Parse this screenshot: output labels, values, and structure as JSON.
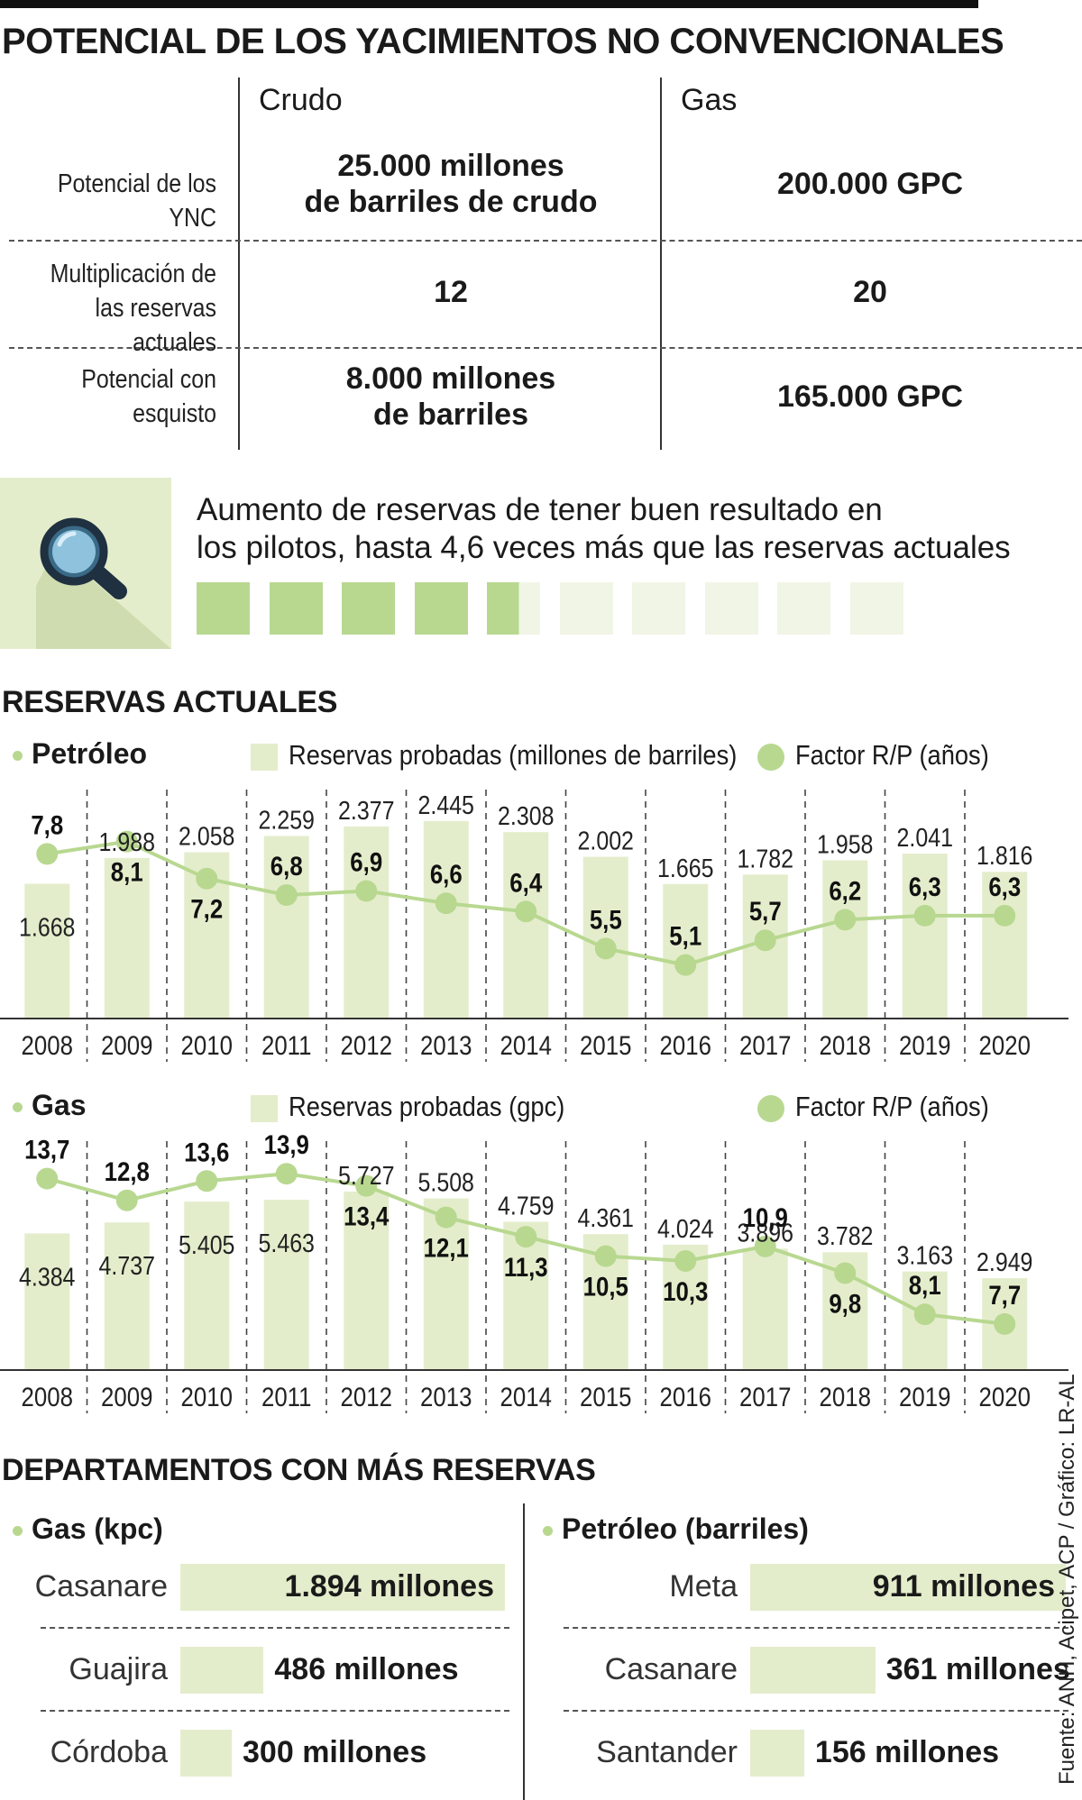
{
  "title": "POTENCIAL DE LOS YACIMIENTOS NO CONVENCIONALES",
  "table": {
    "columns": [
      "Crudo",
      "Gas"
    ],
    "rows": [
      {
        "label": [
          "Potencial de los YNC"
        ],
        "crudo": [
          "25.000 millones",
          "de barriles de crudo"
        ],
        "gas": [
          "200.000 GPC"
        ]
      },
      {
        "label": [
          "Multiplicación de",
          "las reservas actuales"
        ],
        "crudo": [
          "12"
        ],
        "gas": [
          "20"
        ]
      },
      {
        "label": [
          "Potencial con",
          "esquisto"
        ],
        "crudo": [
          "8.000 millones",
          "de barriles"
        ],
        "gas": [
          "165.000 GPC"
        ]
      }
    ]
  },
  "callout": {
    "icon": "magnifier-icon",
    "lines": [
      "Aumento de reservas de tener buen resultado en",
      "los pilotos, hasta 4,6 veces más que las reservas actuales"
    ],
    "multiplier": 4.6,
    "total_blocks": 10
  },
  "reservas_title": "RESERVAS ACTUALES",
  "colors": {
    "bar": "#e4edcb",
    "accent": "#b8d890",
    "text": "#1a1a1a"
  },
  "chart_data": [
    {
      "type": "bar+line",
      "title": "Petróleo",
      "categories": [
        "2008",
        "2009",
        "2010",
        "2011",
        "2012",
        "2013",
        "2014",
        "2015",
        "2016",
        "2017",
        "2018",
        "2019",
        "2020"
      ],
      "bar_series": {
        "name": "Reservas probadas (millones de barriles)",
        "values": [
          1668,
          1988,
          2058,
          2259,
          2377,
          2445,
          2308,
          2002,
          1665,
          1782,
          1958,
          2041,
          1816
        ],
        "labels": [
          "1.668",
          "1.988",
          "2.058",
          "2.259",
          "2.377",
          "2.445",
          "2.308",
          "2.002",
          "1.665",
          "1.782",
          "1.958",
          "2.041",
          "1.816"
        ]
      },
      "line_series": {
        "name": "Factor R/P (años)",
        "values": [
          7.8,
          8.1,
          7.2,
          6.8,
          6.9,
          6.6,
          6.4,
          5.5,
          5.1,
          5.7,
          6.2,
          6.3,
          6.3
        ],
        "labels": [
          "7,8",
          "8,1",
          "7,2",
          "6,8",
          "6,9",
          "6,6",
          "6,4",
          "5,5",
          "5,1",
          "5,7",
          "6,2",
          "6,3",
          "6,3"
        ]
      },
      "bar_ylim": [
        0,
        2700
      ],
      "line_ylim": [
        3.8,
        9.1
      ],
      "value_label_sides": {
        "bar": [
          "in",
          "top",
          "top",
          "top",
          "top",
          "top",
          "top",
          "top",
          "top",
          "top",
          "top",
          "top",
          "top"
        ],
        "line": [
          "above",
          "below",
          "below",
          "above",
          "above",
          "above",
          "above",
          "above",
          "above",
          "above",
          "above",
          "above",
          "above"
        ]
      }
    },
    {
      "type": "bar+line",
      "title": "Gas",
      "categories": [
        "2008",
        "2009",
        "2010",
        "2011",
        "2012",
        "2013",
        "2014",
        "2015",
        "2016",
        "2017",
        "2018",
        "2019",
        "2020"
      ],
      "bar_series": {
        "name": "Reservas probadas (gpc)",
        "values": [
          4384,
          4737,
          5405,
          5463,
          5727,
          5508,
          4759,
          4361,
          4024,
          3896,
          3782,
          3163,
          2949
        ],
        "labels": [
          "4.384",
          "4.737",
          "5.405",
          "5.463",
          "5.727",
          "5.508",
          "4.759",
          "4.361",
          "4.024",
          "3.896",
          "3.782",
          "3.163",
          "2.949"
        ]
      },
      "line_series": {
        "name": "Factor R/P (años)",
        "values": [
          13.7,
          12.8,
          13.6,
          13.9,
          13.4,
          12.1,
          11.3,
          10.5,
          10.3,
          10.9,
          9.8,
          8.1,
          7.7
        ],
        "labels": [
          "13,7",
          "12,8",
          "13,6",
          "13,9",
          "13,4",
          "12,1",
          "11,3",
          "10,5",
          "10,3",
          "10,9",
          "9,8",
          "8,1",
          "7,7"
        ]
      },
      "bar_ylim": [
        0,
        7000
      ],
      "line_ylim": [
        5.8,
        14.8
      ],
      "value_label_sides": {
        "bar": [
          "in",
          "in",
          "in",
          "in",
          "top",
          "top",
          "top",
          "top",
          "top",
          "top",
          "top",
          "top",
          "top"
        ],
        "line": [
          "above",
          "above",
          "above",
          "above",
          "below",
          "below",
          "below",
          "below",
          "below",
          "above",
          "below",
          "above",
          "above"
        ]
      }
    },
    {
      "type": "bar",
      "title": "Gas (kpc)",
      "categories": [
        "Casanare",
        "Guajira",
        "Córdoba"
      ],
      "values": [
        1894,
        486,
        300
      ],
      "labels": [
        "1.894 millones",
        "486 millones",
        "300 millones"
      ]
    },
    {
      "type": "bar",
      "title": "Petróleo (barriles)",
      "categories": [
        "Meta",
        "Casanare",
        "Santander"
      ],
      "values": [
        911,
        361,
        156
      ],
      "labels": [
        "911 millones",
        "361 millones",
        "156 millones"
      ]
    }
  ],
  "dept_title": "DEPARTAMENTOS CON MÁS RESERVAS",
  "source": "Fuente: ANH, Acipet, ACP / Gráfico: LR-AL"
}
